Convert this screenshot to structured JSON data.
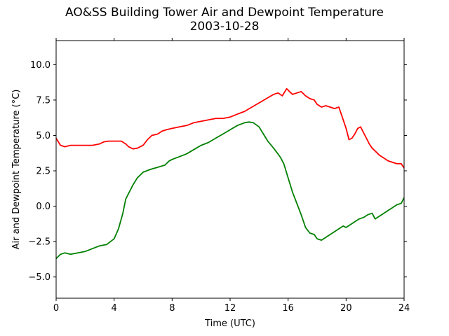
{
  "chart_data": {
    "type": "line",
    "title": "AO&SS Building Tower Air and Dewpoint Temperature",
    "subtitle": "2003-10-28",
    "xlabel": "Time (UTC)",
    "ylabel": "Air and Dewpoint Temperature (°C)",
    "xlim": [
      0,
      24
    ],
    "ylim": [
      -6.5,
      11.7
    ],
    "xticks": [
      0,
      4,
      8,
      12,
      16,
      20,
      24
    ],
    "yticks": [
      -5.0,
      -2.5,
      0.0,
      2.5,
      5.0,
      7.5,
      10.0
    ],
    "ytick_labels": [
      "−5.0",
      "−2.5",
      "0.0",
      "2.5",
      "5.0",
      "7.5",
      "10.0"
    ],
    "grid": false,
    "legend": "none",
    "series": [
      {
        "color": "#ff0000",
        "x": [
          0.0,
          0.3,
          0.6,
          1.0,
          1.5,
          2.0,
          2.5,
          3.0,
          3.3,
          3.6,
          4.0,
          4.5,
          4.8,
          5.0,
          5.3,
          5.6,
          6.0,
          6.3,
          6.6,
          7.0,
          7.3,
          7.6,
          8.0,
          8.5,
          9.0,
          9.5,
          10.0,
          10.5,
          11.0,
          11.5,
          12.0,
          12.5,
          13.0,
          13.5,
          14.0,
          14.5,
          15.0,
          15.3,
          15.6,
          15.9,
          16.1,
          16.3,
          16.6,
          16.9,
          17.2,
          17.5,
          17.8,
          18.0,
          18.3,
          18.6,
          18.9,
          19.2,
          19.5,
          19.8,
          20.0,
          20.2,
          20.4,
          20.6,
          20.8,
          21.0,
          21.2,
          21.4,
          21.6,
          21.8,
          22.0,
          22.3,
          22.6,
          22.9,
          23.2,
          23.5,
          23.8,
          24.0
        ],
        "y": [
          4.8,
          4.3,
          4.2,
          4.3,
          4.3,
          4.3,
          4.3,
          4.4,
          4.55,
          4.6,
          4.6,
          4.6,
          4.4,
          4.2,
          4.05,
          4.1,
          4.3,
          4.7,
          5.0,
          5.1,
          5.3,
          5.4,
          5.5,
          5.6,
          5.7,
          5.9,
          6.0,
          6.1,
          6.2,
          6.2,
          6.3,
          6.5,
          6.7,
          7.0,
          7.3,
          7.6,
          7.9,
          8.0,
          7.8,
          8.3,
          8.1,
          7.9,
          8.0,
          8.1,
          7.8,
          7.6,
          7.5,
          7.2,
          7.0,
          7.1,
          7.0,
          6.9,
          7.0,
          6.1,
          5.5,
          4.7,
          4.8,
          5.1,
          5.5,
          5.6,
          5.2,
          4.8,
          4.4,
          4.1,
          3.9,
          3.6,
          3.4,
          3.2,
          3.1,
          3.0,
          3.0,
          2.7
        ]
      },
      {
        "color": "#008000",
        "x": [
          0.0,
          0.3,
          0.6,
          1.0,
          1.5,
          2.0,
          2.5,
          3.0,
          3.5,
          4.0,
          4.3,
          4.6,
          4.8,
          5.0,
          5.3,
          5.6,
          6.0,
          6.5,
          7.0,
          7.5,
          7.8,
          8.0,
          8.5,
          9.0,
          9.5,
          10.0,
          10.5,
          11.0,
          11.5,
          12.0,
          12.5,
          13.0,
          13.3,
          13.6,
          14.0,
          14.3,
          14.6,
          15.0,
          15.3,
          15.5,
          15.7,
          16.0,
          16.3,
          16.6,
          16.9,
          17.2,
          17.5,
          17.8,
          18.0,
          18.3,
          18.6,
          18.9,
          19.2,
          19.5,
          19.8,
          20.0,
          20.3,
          20.6,
          20.9,
          21.2,
          21.5,
          21.8,
          22.0,
          22.3,
          22.6,
          22.9,
          23.2,
          23.5,
          23.8,
          24.0
        ],
        "y": [
          -3.7,
          -3.4,
          -3.3,
          -3.4,
          -3.3,
          -3.2,
          -3.0,
          -2.8,
          -2.7,
          -2.3,
          -1.6,
          -0.5,
          0.5,
          0.9,
          1.5,
          2.0,
          2.4,
          2.6,
          2.75,
          2.9,
          3.2,
          3.3,
          3.5,
          3.7,
          4.0,
          4.3,
          4.5,
          4.8,
          5.1,
          5.4,
          5.7,
          5.9,
          5.95,
          5.9,
          5.6,
          5.1,
          4.6,
          4.1,
          3.7,
          3.4,
          3.0,
          2.0,
          1.0,
          0.2,
          -0.6,
          -1.5,
          -1.9,
          -2.0,
          -2.3,
          -2.4,
          -2.2,
          -2.0,
          -1.8,
          -1.6,
          -1.4,
          -1.5,
          -1.3,
          -1.1,
          -0.9,
          -0.8,
          -0.6,
          -0.5,
          -0.9,
          -0.7,
          -0.5,
          -0.3,
          -0.1,
          0.1,
          0.2,
          0.6
        ]
      }
    ]
  }
}
